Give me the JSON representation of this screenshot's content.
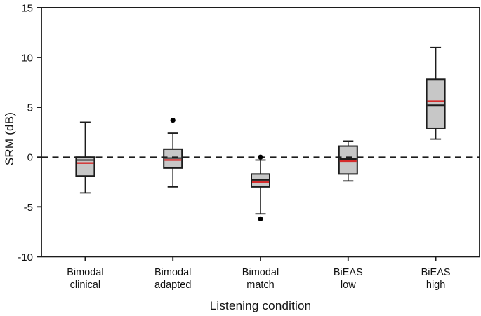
{
  "chart_data": {
    "type": "box",
    "title": "",
    "xlabel": "Listening condition",
    "ylabel": "SRM (dB)",
    "ylim": [
      -10,
      15
    ],
    "yticks": [
      15,
      10,
      5,
      0,
      -5,
      -10
    ],
    "reference_line": {
      "y": 0,
      "style": "dashed"
    },
    "grid": false,
    "legend_position": "none",
    "colors": {
      "box_fill": "#c7c7c7",
      "box_edge": "#1c1c1c",
      "median": "#1c1c1c",
      "mean": "#d52b2b",
      "outlier": "#000000",
      "axis": "#1c1c1c",
      "text": "#111111"
    },
    "boxes": [
      {
        "label": [
          "Bimodal",
          "clinical"
        ],
        "whisker_low": -3.6,
        "q1": -1.9,
        "median": -0.3,
        "mean": -0.6,
        "q3": 0.0,
        "whisker_high": 3.5,
        "outliers": []
      },
      {
        "label": [
          "Bimodal",
          "adapted"
        ],
        "whisker_low": -3.0,
        "q1": -1.1,
        "median": -0.1,
        "mean": -0.3,
        "q3": 0.8,
        "whisker_high": 2.4,
        "outliers": [
          3.7
        ]
      },
      {
        "label": [
          "Bimodal",
          "match"
        ],
        "whisker_low": -5.7,
        "q1": -3.0,
        "median": -2.3,
        "mean": -2.5,
        "q3": -1.7,
        "whisker_high": -0.3,
        "outliers": [
          0.0,
          -6.2
        ]
      },
      {
        "label": [
          "BiEAS",
          "low"
        ],
        "whisker_low": -2.4,
        "q1": -1.7,
        "median": -0.2,
        "mean": -0.4,
        "q3": 1.1,
        "whisker_high": 1.6,
        "outliers": []
      },
      {
        "label": [
          "BiEAS",
          "high"
        ],
        "whisker_low": 1.8,
        "q1": 2.9,
        "median": 5.2,
        "mean": 5.6,
        "q3": 7.8,
        "whisker_high": 11.0,
        "outliers": []
      }
    ]
  }
}
